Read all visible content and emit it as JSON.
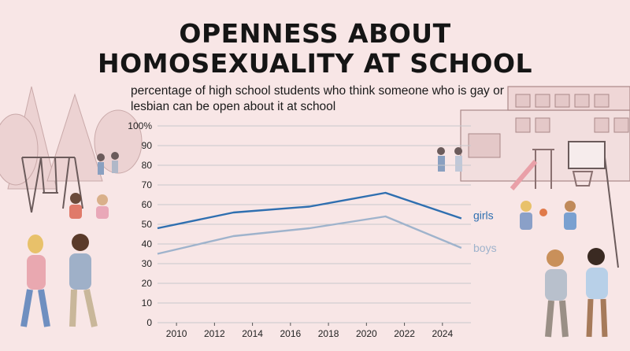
{
  "header": {
    "title_line1": "OPENNESS ABOUT",
    "title_line2": "HOMOSEXUALITY AT SCHOOL",
    "subtitle": "percentage of high school students who think someone who is gay or lesbian can be open about it at school"
  },
  "colors": {
    "background": "#f8e6e6",
    "girls": "#2f6fb0",
    "boys": "#9fb3cc",
    "grid": "#c8c8cc"
  },
  "illustration": {
    "left": "schoolyard with swings, trees and students",
    "right": "school building, slide, basketball hoop and students"
  },
  "chart_data": {
    "type": "line",
    "xlim": [
      2009,
      2025.5
    ],
    "ylim": [
      0,
      100
    ],
    "xticks": [
      "2010",
      "2012",
      "2014",
      "2016",
      "2018",
      "2020",
      "2022",
      "2024"
    ],
    "yticks": [
      "0",
      "10",
      "20",
      "30",
      "40",
      "50",
      "60",
      "70",
      "80",
      "90",
      "100%"
    ],
    "series": [
      {
        "name": "girls",
        "color": "#2f6fb0",
        "points": [
          [
            2009,
            48
          ],
          [
            2013,
            56
          ],
          [
            2017,
            59
          ],
          [
            2021,
            66
          ],
          [
            2025,
            53
          ]
        ]
      },
      {
        "name": "boys",
        "color": "#9fb3cc",
        "points": [
          [
            2009,
            35
          ],
          [
            2013,
            44
          ],
          [
            2017,
            48
          ],
          [
            2021,
            54
          ],
          [
            2025,
            38
          ]
        ]
      }
    ]
  }
}
